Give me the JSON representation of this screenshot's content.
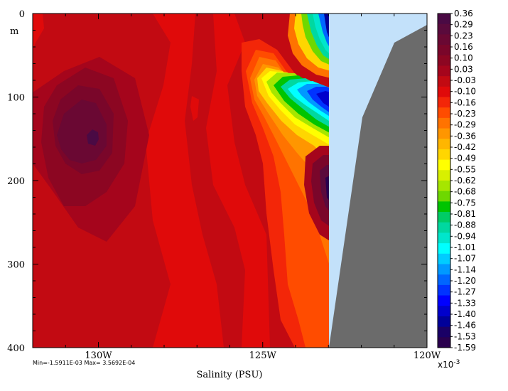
{
  "chart_data": {
    "type": "heatmap",
    "xlabel": "Salinity (PSU)",
    "ylabel": "m",
    "x_ticks": [
      "130W",
      "125W",
      "120W"
    ],
    "x_tick_values": [
      -130,
      -125,
      -120
    ],
    "xlim": [
      -132,
      -120
    ],
    "y_ticks": [
      "0",
      "100",
      "200",
      "300",
      "400"
    ],
    "y_tick_values": [
      0,
      100,
      200,
      300,
      400
    ],
    "ylim": [
      400,
      0
    ],
    "stats_text": "Min=-1.5911E-03  Max= 3.5692E-04",
    "colorbar_exponent_label": "x10",
    "colorbar_exponent_power": "-3",
    "colorbar_levels": [
      "0.36",
      "0.29",
      "0.23",
      "0.16",
      "0.10",
      "0.03",
      "-0.03",
      "-0.10",
      "-0.16",
      "-0.23",
      "-0.29",
      "-0.36",
      "-0.42",
      "-0.49",
      "-0.55",
      "-0.62",
      "-0.68",
      "-0.75",
      "-0.81",
      "-0.88",
      "-0.94",
      "-1.01",
      "-1.07",
      "-1.14",
      "-1.20",
      "-1.27",
      "-1.33",
      "-1.40",
      "-1.46",
      "-1.53",
      "-1.59"
    ],
    "colorbar_colors": [
      "#4a0a44",
      "#5a0a3c",
      "#6a0833",
      "#7a062a",
      "#8c0622",
      "#a5051c",
      "#c20a12",
      "#e00a0a",
      "#f32608",
      "#ff4c00",
      "#ff7300",
      "#ff9600",
      "#ffb600",
      "#ffd600",
      "#ffff00",
      "#d8f000",
      "#a6e600",
      "#6ed800",
      "#00c400",
      "#00cc66",
      "#00d8a0",
      "#00e6cc",
      "#00ffff",
      "#00ccff",
      "#0099ff",
      "#0066ff",
      "#0033ff",
      "#0000ff",
      "#0000cc",
      "#000099",
      "#1a0066",
      "#2a004e"
    ],
    "land_color": "#6b6b6b",
    "shelf_color": "#c3e1fa",
    "grid": false
  }
}
